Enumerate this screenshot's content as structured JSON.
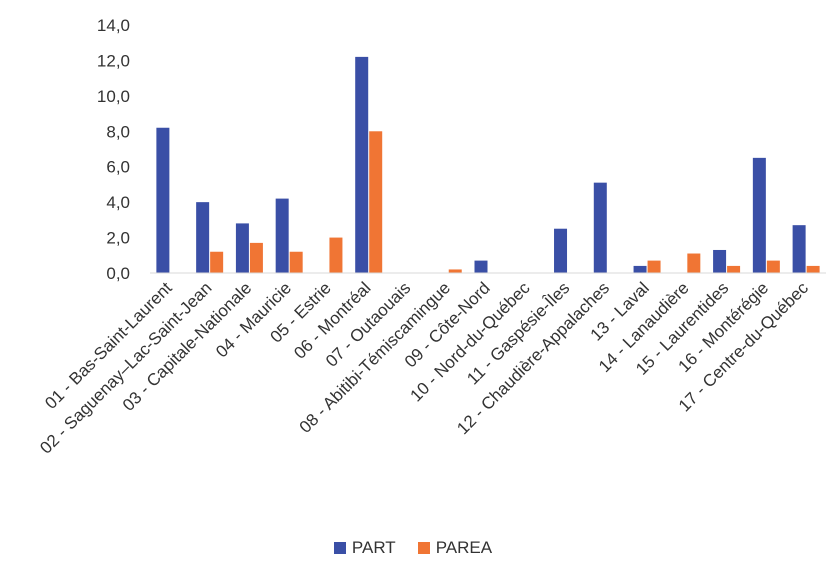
{
  "chart_data": {
    "type": "bar",
    "categories": [
      "01 - Bas-Saint-Laurent",
      "02 - Saguenay–Lac-Saint-Jean",
      "03 - Capitale-Nationale",
      "04 - Mauricie",
      "05 - Estrie",
      "06 - Montréal",
      "07 - Outaouais",
      "08 - Abitibi-Témiscamingue",
      "09 - Côte-Nord",
      "10 - Nord-du-Québec",
      "11 - Gaspésie-Îles",
      "12 - Chaudière-Appalaches",
      "13 - Laval",
      "14 - Lanaudière",
      "15 - Laurentides",
      "16 - Montérégie",
      "17 - Centre-du-Québec"
    ],
    "series": [
      {
        "name": "PART",
        "color": "#3a4fa6",
        "values": [
          8.2,
          4.0,
          2.8,
          4.2,
          0,
          12.2,
          0,
          0,
          0.7,
          0,
          2.5,
          5.1,
          0.4,
          0,
          1.3,
          6.5,
          2.7
        ]
      },
      {
        "name": "PAREA",
        "color": "#f07534",
        "values": [
          0,
          1.2,
          1.7,
          1.2,
          2.0,
          8.0,
          0,
          0.2,
          0,
          0,
          0,
          0,
          0.7,
          1.1,
          0.4,
          0.7,
          0.4
        ]
      }
    ],
    "y_ticks": [
      "0,0",
      "2,0",
      "4,0",
      "6,0",
      "8,0",
      "10,0",
      "12,0",
      "14,0"
    ],
    "ylim": [
      0,
      14
    ],
    "xlabel": "",
    "ylabel": "",
    "title": "",
    "legend_position": "bottom",
    "grid": false
  }
}
